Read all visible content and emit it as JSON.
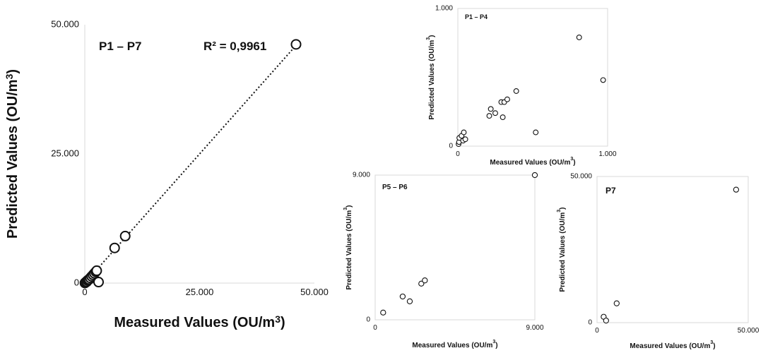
{
  "chart_data": [
    {
      "id": "main",
      "type": "scatter",
      "title": "P1 – P7",
      "annotation": "R² = 0,9961",
      "xlabel_pre": "Measured Values (OU/m",
      "xlabel_sup": "3",
      "xlabel_post": ")",
      "ylabel_pre": "Predicted Values (OU/m",
      "ylabel_sup": "3",
      "ylabel_post": ")",
      "xlim": [
        0,
        50000
      ],
      "ylim": [
        0,
        50000
      ],
      "xticks": [
        {
          "value": 0,
          "label": "0"
        },
        {
          "value": 25000,
          "label": "25.000"
        },
        {
          "value": 50000,
          "label": "50.000"
        }
      ],
      "yticks": [
        {
          "value": 0,
          "label": "0"
        },
        {
          "value": 25000,
          "label": "25.000"
        },
        {
          "value": 50000,
          "label": "50.000"
        }
      ],
      "grid": false,
      "trendline": [
        [
          0,
          0
        ],
        [
          46000,
          46000
        ]
      ],
      "points": [
        [
          30,
          20
        ],
        [
          80,
          60
        ],
        [
          150,
          120
        ],
        [
          250,
          200
        ],
        [
          380,
          320
        ],
        [
          420,
          260
        ],
        [
          600,
          520
        ],
        [
          800,
          650
        ],
        [
          950,
          720
        ],
        [
          1200,
          1000
        ],
        [
          1500,
          1300
        ],
        [
          1800,
          1600
        ],
        [
          2100,
          1900
        ],
        [
          2400,
          2200
        ],
        [
          2600,
          2400
        ],
        [
          3000,
          200
        ],
        [
          6500,
          6800
        ],
        [
          8800,
          9100
        ],
        [
          46000,
          46200
        ]
      ]
    },
    {
      "id": "p1p4",
      "type": "scatter",
      "title": "P1 – P4",
      "xlabel_pre": "Measured Values (OU/m",
      "xlabel_sup": "3",
      "xlabel_post": ")",
      "ylabel_pre": "Predicted Values (OU/m",
      "ylabel_sup": "3",
      "ylabel_post": ")",
      "xlim": [
        0,
        1000
      ],
      "ylim": [
        0,
        1000
      ],
      "xticks": [
        {
          "value": 0,
          "label": "0"
        },
        {
          "value": 1000,
          "label": "1.000"
        }
      ],
      "yticks": [
        {
          "value": 0,
          "label": "0"
        },
        {
          "value": 1000,
          "label": "1.000"
        }
      ],
      "grid": false,
      "points": [
        [
          5,
          15
        ],
        [
          8,
          30
        ],
        [
          10,
          60
        ],
        [
          25,
          75
        ],
        [
          35,
          40
        ],
        [
          40,
          100
        ],
        [
          50,
          50
        ],
        [
          210,
          220
        ],
        [
          220,
          270
        ],
        [
          250,
          240
        ],
        [
          290,
          320
        ],
        [
          300,
          210
        ],
        [
          310,
          320
        ],
        [
          330,
          340
        ],
        [
          390,
          400
        ],
        [
          520,
          100
        ],
        [
          810,
          790
        ],
        [
          970,
          480
        ]
      ]
    },
    {
      "id": "p5p6",
      "type": "scatter",
      "title": "P5 – P6",
      "xlabel_pre": "Measured Values (OU/m",
      "xlabel_sup": "3",
      "xlabel_post": ")",
      "ylabel_pre": "Predicted Values (OU/m",
      "ylabel_sup": "3",
      "ylabel_post": ")",
      "xlim": [
        0,
        9000
      ],
      "ylim": [
        0,
        9000
      ],
      "xticks": [
        {
          "value": 0,
          "label": "0"
        },
        {
          "value": 9000,
          "label": "9.000"
        }
      ],
      "yticks": [
        {
          "value": 0,
          "label": "0"
        },
        {
          "value": 9000,
          "label": "9.000"
        }
      ],
      "grid": false,
      "points": [
        [
          450,
          450
        ],
        [
          1550,
          1450
        ],
        [
          1950,
          1150
        ],
        [
          2600,
          2250
        ],
        [
          2800,
          2450
        ],
        [
          9000,
          9000
        ]
      ]
    },
    {
      "id": "p7",
      "type": "scatter",
      "title": "P7",
      "xlabel_pre": "Measured Values (OU/m",
      "xlabel_sup": "3",
      "xlabel_post": ")",
      "ylabel_pre": "Predicted Values (OU/m",
      "ylabel_sup": "3",
      "ylabel_post": ")",
      "xlim": [
        0,
        50000
      ],
      "ylim": [
        0,
        50000
      ],
      "xticks": [
        {
          "value": 0,
          "label": "0"
        },
        {
          "value": 50000,
          "label": "50.000"
        }
      ],
      "yticks": [
        {
          "value": 0,
          "label": "0"
        },
        {
          "value": 50000,
          "label": "50.000"
        }
      ],
      "grid": false,
      "points": [
        [
          2200,
          2000
        ],
        [
          3000,
          700
        ],
        [
          6500,
          6600
        ],
        [
          46000,
          45500
        ]
      ]
    }
  ]
}
